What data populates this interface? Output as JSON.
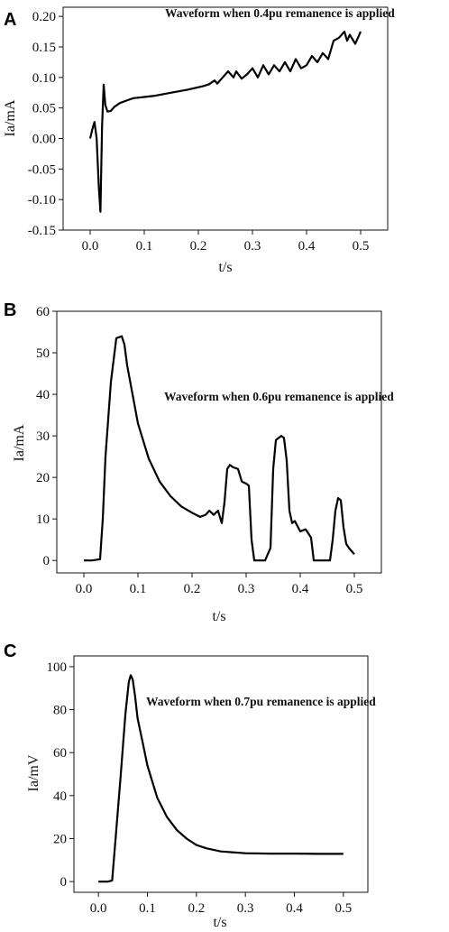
{
  "chart_data": [
    {
      "type": "line",
      "panel_label": "A",
      "annotation": "Waveform when 0.4pu remanence is applied",
      "xlabel": "t/s",
      "ylabel": "Ia/mA",
      "xlim": [
        -0.05,
        0.55
      ],
      "ylim": [
        -0.15,
        0.215
      ],
      "xticks": [
        0.0,
        0.1,
        0.2,
        0.3,
        0.4,
        0.5
      ],
      "yticks": [
        -0.15,
        -0.1,
        -0.05,
        0.0,
        0.05,
        0.1,
        0.15,
        0.2
      ],
      "xtick_labels": [
        "0.0",
        "0.1",
        "0.2",
        "0.3",
        "0.4",
        "0.5"
      ],
      "ytick_labels": [
        "-0.15",
        "-0.10",
        "-0.05",
        "0.00",
        "0.05",
        "0.10",
        "0.15",
        "0.20"
      ],
      "series": [
        {
          "x": [
            0.0,
            0.004,
            0.008,
            0.012,
            0.016,
            0.019,
            0.022,
            0.025,
            0.028,
            0.032,
            0.038,
            0.045,
            0.055,
            0.07,
            0.08,
            0.1,
            0.12,
            0.15,
            0.18,
            0.21,
            0.22,
            0.23,
            0.235,
            0.245,
            0.255,
            0.265,
            0.27,
            0.28,
            0.29,
            0.3,
            0.31,
            0.32,
            0.33,
            0.34,
            0.35,
            0.36,
            0.37,
            0.38,
            0.39,
            0.4,
            0.41,
            0.42,
            0.43,
            0.44,
            0.45,
            0.46,
            0.47,
            0.475,
            0.48,
            0.49,
            0.5
          ],
          "y": [
            0.0,
            0.015,
            0.027,
            0.0,
            -0.08,
            -0.12,
            0.02,
            0.088,
            0.055,
            0.044,
            0.045,
            0.052,
            0.058,
            0.063,
            0.066,
            0.068,
            0.07,
            0.075,
            0.08,
            0.086,
            0.089,
            0.095,
            0.09,
            0.1,
            0.11,
            0.1,
            0.11,
            0.098,
            0.105,
            0.115,
            0.1,
            0.12,
            0.105,
            0.12,
            0.11,
            0.125,
            0.11,
            0.13,
            0.115,
            0.12,
            0.135,
            0.125,
            0.14,
            0.13,
            0.16,
            0.165,
            0.175,
            0.16,
            0.17,
            0.155,
            0.175
          ]
        }
      ]
    },
    {
      "type": "line",
      "panel_label": "B",
      "annotation": "Waveform when 0.6pu remanence is applied",
      "xlabel": "t/s",
      "ylabel": "Ia/mA",
      "xlim": [
        -0.05,
        0.55
      ],
      "ylim": [
        -3,
        60
      ],
      "xticks": [
        0.0,
        0.1,
        0.2,
        0.3,
        0.4,
        0.5
      ],
      "yticks": [
        0,
        10,
        20,
        30,
        40,
        50,
        60
      ],
      "xtick_labels": [
        "0.0",
        "0.1",
        "0.2",
        "0.3",
        "0.4",
        "0.5"
      ],
      "ytick_labels": [
        "0",
        "10",
        "20",
        "30",
        "40",
        "50",
        "60"
      ],
      "series": [
        {
          "x": [
            0.0,
            0.015,
            0.03,
            0.035,
            0.04,
            0.05,
            0.06,
            0.07,
            0.075,
            0.08,
            0.09,
            0.1,
            0.12,
            0.14,
            0.16,
            0.18,
            0.2,
            0.215,
            0.225,
            0.232,
            0.24,
            0.248,
            0.255,
            0.26,
            0.265,
            0.27,
            0.275,
            0.285,
            0.292,
            0.3,
            0.305,
            0.31,
            0.315,
            0.335,
            0.345,
            0.35,
            0.355,
            0.36,
            0.365,
            0.37,
            0.375,
            0.38,
            0.385,
            0.39,
            0.4,
            0.41,
            0.42,
            0.425,
            0.43,
            0.455,
            0.46,
            0.465,
            0.47,
            0.475,
            0.48,
            0.485,
            0.49,
            0.5
          ],
          "y": [
            0.0,
            0.0,
            0.3,
            10,
            25,
            43,
            53.5,
            54,
            52,
            47,
            40,
            33,
            24.5,
            19,
            15.5,
            13,
            11.5,
            10.5,
            11,
            12,
            11,
            12,
            9,
            14,
            22,
            23,
            22.5,
            22,
            19,
            18.5,
            18,
            5,
            0,
            0,
            3,
            22,
            29,
            29.5,
            30,
            29.5,
            24,
            12,
            9,
            9.5,
            7,
            7.5,
            5.5,
            0,
            0,
            0,
            5,
            12,
            15,
            14.5,
            8,
            4,
            3,
            1.5
          ]
        }
      ]
    },
    {
      "type": "line",
      "panel_label": "C",
      "annotation": "Waveform when 0.7pu remanence is applied",
      "xlabel": "t/s",
      "ylabel": "Ia/mV",
      "xlim": [
        -0.05,
        0.55
      ],
      "ylim": [
        -5,
        105
      ],
      "xticks": [
        0.0,
        0.1,
        0.2,
        0.3,
        0.4,
        0.5
      ],
      "yticks": [
        0,
        20,
        40,
        60,
        80,
        100
      ],
      "xtick_labels": [
        "0.0",
        "0.1",
        "0.2",
        "0.3",
        "0.4",
        "0.5"
      ],
      "ytick_labels": [
        "0",
        "20",
        "40",
        "60",
        "80",
        "100"
      ],
      "series": [
        {
          "x": [
            0.0,
            0.02,
            0.028,
            0.035,
            0.045,
            0.055,
            0.062,
            0.066,
            0.07,
            0.075,
            0.08,
            0.09,
            0.1,
            0.12,
            0.14,
            0.16,
            0.18,
            0.2,
            0.22,
            0.25,
            0.3,
            0.35,
            0.4,
            0.45,
            0.5
          ],
          "y": [
            0.0,
            0.0,
            0.5,
            20,
            48,
            78,
            93,
            96,
            94,
            86,
            76,
            65,
            54,
            39,
            30,
            24,
            20,
            17,
            15.5,
            14,
            13.2,
            13,
            13,
            12.9,
            12.9
          ]
        }
      ]
    }
  ]
}
